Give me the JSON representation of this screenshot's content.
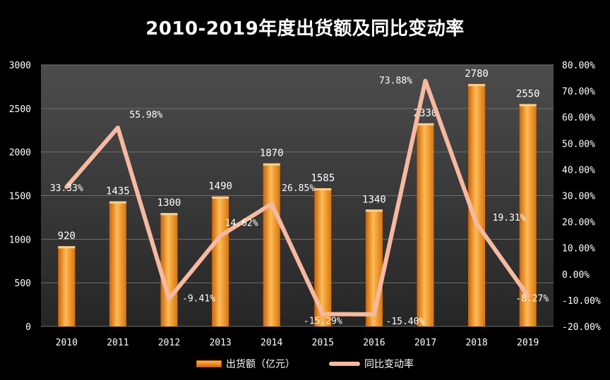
{
  "chart_data": {
    "type": "bar",
    "title": "2010-2019年度出货额及同比变动率",
    "categories": [
      "2010",
      "2011",
      "2012",
      "2013",
      "2014",
      "2015",
      "2016",
      "2017",
      "2018",
      "2019"
    ],
    "series": [
      {
        "name": "出货额（亿元）",
        "type": "bar",
        "axis": "left",
        "values": [
          920,
          1435,
          1300,
          1490,
          1870,
          1585,
          1340,
          2330,
          2780,
          2550
        ],
        "labels": [
          "920",
          "1435",
          "1300",
          "1490",
          "1870",
          "1585",
          "1340",
          "2330",
          "2780",
          "2550"
        ]
      },
      {
        "name": "同比变动率",
        "type": "line",
        "axis": "right",
        "values": [
          33.33,
          55.98,
          -9.41,
          14.62,
          26.85,
          -15.29,
          -15.4,
          73.88,
          19.31,
          -8.27
        ],
        "labels": [
          "33.33%",
          "55.98%",
          "-9.41%",
          "14.62%",
          "26.85%",
          "-15.29%",
          "-15.40%",
          "73.88%",
          "19.31%",
          "-8.27%"
        ]
      }
    ],
    "ylim_left": [
      0,
      3000
    ],
    "yticks_left": [
      "0",
      "500",
      "1000",
      "1500",
      "2000",
      "2500",
      "3000"
    ],
    "ylim_right": [
      -20,
      80
    ],
    "yticks_right": [
      "-20.00%",
      "-10.00%",
      "0.00%",
      "10.00%",
      "20.00%",
      "30.00%",
      "40.00%",
      "50.00%",
      "60.00%",
      "70.00%",
      "80.00%"
    ],
    "grid": true,
    "legend_position": "bottom",
    "colors": {
      "bar_top": "#ffb54a",
      "bar_bottom": "#d96e08",
      "line": "#f6b9a1",
      "plot_bg_top": "#4a4a4a",
      "plot_bg_bottom": "#2a2a2a",
      "grid": "#6a6a6a"
    }
  }
}
